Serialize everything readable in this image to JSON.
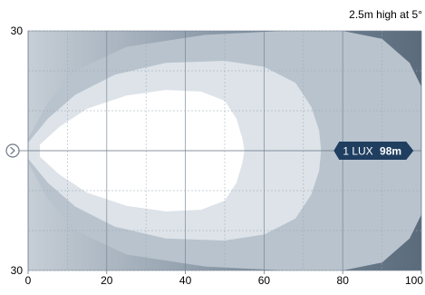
{
  "chart_data": {
    "type": "area",
    "subtitle": "2.5m high at 5°",
    "x_ticks": [
      "0",
      "20",
      "40",
      "60",
      "80",
      "100"
    ],
    "y_ticks": {
      "top": "30",
      "bottom": "30"
    },
    "xlim": [
      0,
      100
    ],
    "ylim": [
      -30,
      30
    ],
    "grid": true,
    "series": [
      {
        "level": 4,
        "outline": [
          [
            0,
            -3
          ],
          [
            5,
            -12
          ],
          [
            12,
            -20
          ],
          [
            25,
            -26
          ],
          [
            45,
            -29
          ],
          [
            65,
            -30
          ],
          [
            80,
            -30
          ],
          [
            90,
            -28
          ],
          [
            97,
            -22
          ],
          [
            100,
            -16
          ],
          [
            100,
            16
          ],
          [
            97,
            22
          ],
          [
            90,
            28
          ],
          [
            80,
            30
          ],
          [
            65,
            30
          ],
          [
            45,
            29
          ],
          [
            25,
            26
          ],
          [
            12,
            20
          ],
          [
            5,
            12
          ],
          [
            0,
            3
          ]
        ]
      },
      {
        "level": 3,
        "outline": [
          [
            0,
            -2
          ],
          [
            5,
            -8
          ],
          [
            12,
            -14
          ],
          [
            22,
            -19
          ],
          [
            35,
            -22
          ],
          [
            50,
            -22.5
          ],
          [
            60,
            -21
          ],
          [
            68,
            -17
          ],
          [
            72,
            -11
          ],
          [
            74,
            -5
          ],
          [
            74.5,
            0
          ],
          [
            74,
            5
          ],
          [
            72,
            11
          ],
          [
            68,
            17
          ],
          [
            60,
            21
          ],
          [
            50,
            22.5
          ],
          [
            35,
            22
          ],
          [
            22,
            19
          ],
          [
            12,
            14
          ],
          [
            5,
            8
          ],
          [
            0,
            2
          ]
        ]
      },
      {
        "level": 2,
        "outline": [
          [
            3,
            -1.5
          ],
          [
            8,
            -6
          ],
          [
            15,
            -10.5
          ],
          [
            25,
            -13.8
          ],
          [
            35,
            -15.2
          ],
          [
            44,
            -14.8
          ],
          [
            50,
            -12.5
          ],
          [
            53,
            -8
          ],
          [
            54.5,
            -3
          ],
          [
            55,
            0
          ],
          [
            54.5,
            3
          ],
          [
            53,
            8
          ],
          [
            50,
            12.5
          ],
          [
            44,
            14.8
          ],
          [
            35,
            15.2
          ],
          [
            25,
            13.8
          ],
          [
            15,
            10.5
          ],
          [
            8,
            6
          ],
          [
            3,
            1.5
          ]
        ]
      }
    ],
    "lux_label": {
      "prefix": "1 LUX",
      "value": "98m",
      "x": 98,
      "y": 0
    },
    "colors": {
      "background": "#f3f5f7",
      "gradient_left": "#c6ced6",
      "gradient_mid": "#7c8c9c",
      "gradient_right": "#5a6b7c",
      "level4": "#b9c3cd",
      "level3": "#dde3e9",
      "level2": "#ffffff",
      "grid_major": "#6c7a88",
      "grid_minor": "#9aa7b4",
      "label_fill": "#1f3e60",
      "label_text": "#ffffff"
    },
    "origin_icon": "circle-chevron-icon"
  }
}
